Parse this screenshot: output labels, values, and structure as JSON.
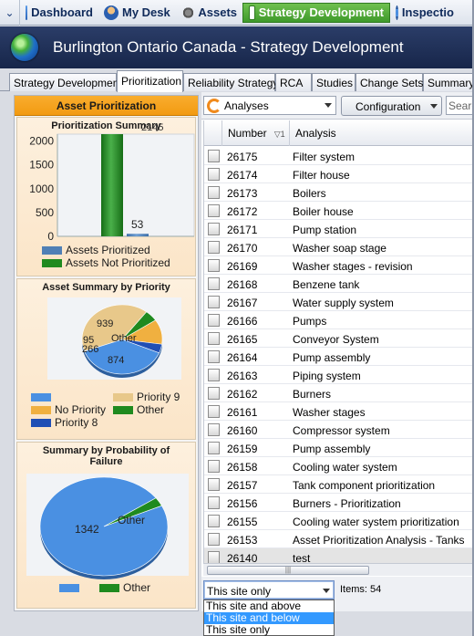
{
  "nav": {
    "items": [
      {
        "label": "Dashboard",
        "icon": "dashboard-icon"
      },
      {
        "label": "My Desk",
        "icon": "my-desk-icon"
      },
      {
        "label": "Assets",
        "icon": "assets-icon"
      },
      {
        "label": "Strategy Development",
        "icon": "strategy-icon"
      },
      {
        "label": "Inspectio",
        "icon": "inspection-icon"
      }
    ]
  },
  "header": {
    "title": "Burlington Ontario Canada - Strategy Development"
  },
  "tabs": [
    "Strategy Development",
    "Prioritization",
    "Reliability Strategy",
    "RCA",
    "Studies",
    "Change Sets",
    "Summary"
  ],
  "left": {
    "title": "Asset Prioritization",
    "summary": {
      "title": "Prioritization Summary",
      "overlay_label": "2145",
      "yticks": [
        "2000",
        "1500",
        "1000",
        "500",
        "0"
      ],
      "legend": [
        "Assets Prioritized",
        "Assets Not Prioritized"
      ]
    },
    "priority": {
      "title": "Asset Summary by Priority",
      "labels": [
        "939",
        "Other",
        "95",
        "266",
        "874"
      ],
      "legend": [
        "",
        "Priority 9",
        "No Priority",
        "Other",
        "Priority 8"
      ]
    },
    "probability": {
      "title_line1": "Summary by Probability of",
      "title_line2": "Failure",
      "labels": [
        "1342",
        "Other"
      ],
      "legend": [
        "",
        "Other"
      ]
    }
  },
  "chart_data": [
    {
      "type": "bar",
      "title": "Prioritization Summary",
      "categories": [
        "Assets Not Prioritized",
        "Assets Prioritized"
      ],
      "values": [
        2145,
        53
      ],
      "ylim": [
        0,
        2145
      ],
      "data_labels": [
        "2145",
        "53"
      ],
      "legend_position": "bottom",
      "colors": {
        "Assets Prioritized": "#4f7fb5",
        "Assets Not Prioritized": "#1f8a1f"
      }
    },
    {
      "type": "pie",
      "title": "Asset Summary by Priority",
      "slices": [
        {
          "name": "Priority 9",
          "value": 939,
          "color": "#e8c88a"
        },
        {
          "name": "Other",
          "value": 120,
          "color": "#1f8a1f"
        },
        {
          "name": "No Priority",
          "value": 266,
          "color": "#f0b040"
        },
        {
          "name": "Priority 8",
          "value": 95,
          "color": "#1f4fb5"
        },
        {
          "name": "",
          "value": 874,
          "color": "#4a90e2"
        }
      ],
      "legend_position": "bottom"
    },
    {
      "type": "pie",
      "title": "Summary by Probability of Failure",
      "slices": [
        {
          "name": "",
          "value": 1342,
          "color": "#4a90e2"
        },
        {
          "name": "Other",
          "value": 40,
          "color": "#1f8a1f"
        }
      ],
      "legend_position": "bottom"
    }
  ],
  "toolbar": {
    "analyses_label": "Analyses",
    "config_label": "Configuration",
    "search_placeholder": "Search"
  },
  "grid": {
    "columns": [
      "Number",
      "Analysis"
    ],
    "sort_indicator": "▽1",
    "rows": [
      {
        "num": "26175",
        "name": "Filter system"
      },
      {
        "num": "26174",
        "name": "Filter house"
      },
      {
        "num": "26173",
        "name": "Boilers"
      },
      {
        "num": "26172",
        "name": "Boiler house"
      },
      {
        "num": "26171",
        "name": "Pump station"
      },
      {
        "num": "26170",
        "name": "Washer soap stage"
      },
      {
        "num": "26169",
        "name": "Washer stages - revision"
      },
      {
        "num": "26168",
        "name": "Benzene tank"
      },
      {
        "num": "26167",
        "name": "Water supply system"
      },
      {
        "num": "26166",
        "name": "Pumps"
      },
      {
        "num": "26165",
        "name": "Conveyor System"
      },
      {
        "num": "26164",
        "name": "Pump assembly"
      },
      {
        "num": "26163",
        "name": "Piping system"
      },
      {
        "num": "26162",
        "name": "Burners"
      },
      {
        "num": "26161",
        "name": "Washer stages"
      },
      {
        "num": "26160",
        "name": "Compressor system"
      },
      {
        "num": "26159",
        "name": "Pump assembly"
      },
      {
        "num": "26158",
        "name": "Cooling water system"
      },
      {
        "num": "26157",
        "name": "Tank component prioritization"
      },
      {
        "num": "26156",
        "name": "Burners - Prioritization"
      },
      {
        "num": "26155",
        "name": "Cooling water system prioritization"
      },
      {
        "num": "26153",
        "name": "Asset Prioritization Analysis - Tanks"
      },
      {
        "num": "26140",
        "name": "test"
      }
    ]
  },
  "footer": {
    "site_value": "This site only",
    "items_text": "Items: 54",
    "options": [
      "This site and above",
      "This site and below",
      "This site only"
    ]
  }
}
